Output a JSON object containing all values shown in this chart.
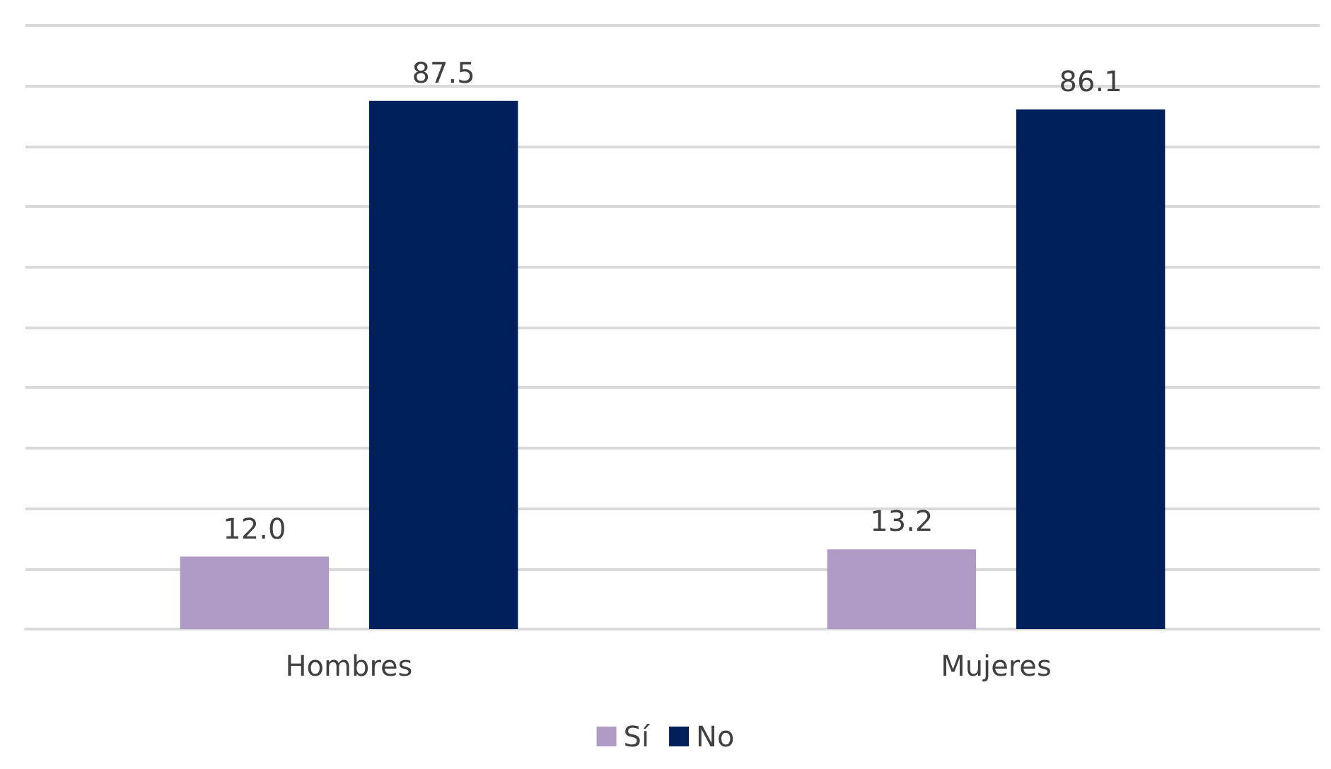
{
  "chart_data": {
    "type": "bar",
    "categories": [
      "Hombres",
      "Mujeres"
    ],
    "series": [
      {
        "name": "Sí",
        "color": "#b09ac6",
        "values": [
          12.0,
          13.2
        ],
        "value_labels": [
          "12.0",
          "13.2"
        ]
      },
      {
        "name": "No",
        "color": "#00205b",
        "values": [
          87.5,
          86.1
        ],
        "value_labels": [
          "87.5",
          "86.1"
        ]
      }
    ],
    "ylim": [
      0,
      100
    ],
    "yticks": [
      {
        "value": 0,
        "label": null
      },
      {
        "value": 10,
        "label": null
      },
      {
        "value": 20,
        "label": null
      },
      {
        "value": 30,
        "label": null
      },
      {
        "value": 40,
        "label": null
      },
      {
        "value": 50,
        "label": null
      },
      {
        "value": 60,
        "label": null
      },
      {
        "value": 70,
        "label": null
      },
      {
        "value": 80,
        "label": null
      },
      {
        "value": 90,
        "label": null
      },
      {
        "value": 100,
        "label": null
      }
    ],
    "tick_labels": "x",
    "grid": "y",
    "legend": "bottom"
  }
}
